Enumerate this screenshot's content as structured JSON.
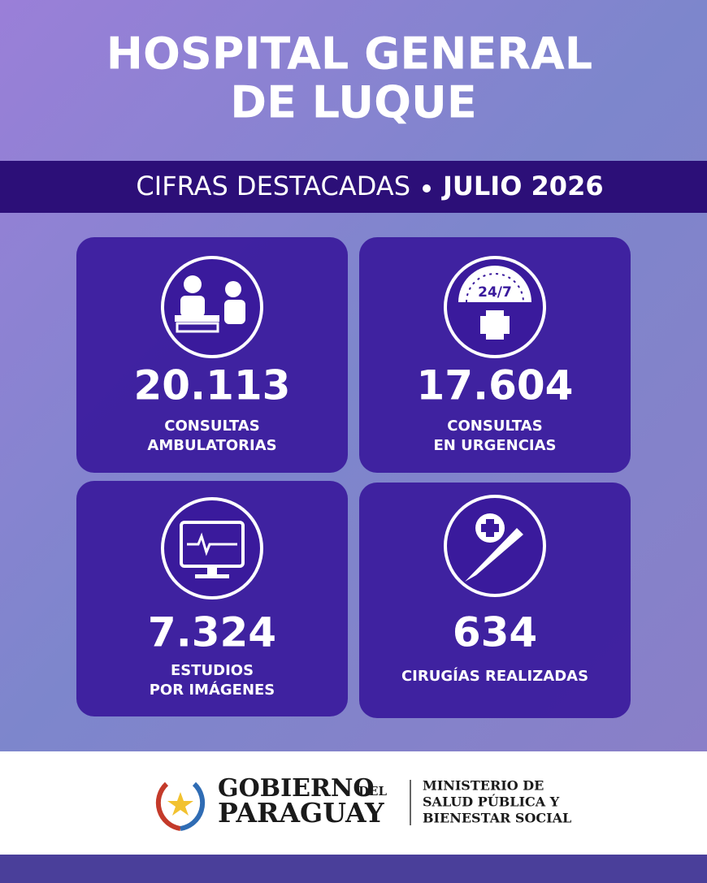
{
  "header": {
    "title": [
      "HOSPITAL GENERAL",
      "DE LUQUE"
    ]
  },
  "banner": {
    "text": "CIFRAS DESTACADAS",
    "period": "JULIO 2026"
  },
  "stats": [
    {
      "value": "20.113",
      "label": [
        "CONSULTAS",
        "AMBULATORIAS"
      ]
    },
    {
      "value": "17.604",
      "label": [
        "CONSULTAS",
        "EN URGENCIAS"
      ],
      "icon_text": "24/7"
    },
    {
      "value": "7.324",
      "label": [
        "ESTUDIOS",
        "POR IMÁGENES"
      ]
    },
    {
      "value": "634",
      "label": [
        "CIRUGÍAS REALIZADAS"
      ]
    }
  ],
  "footer": {
    "gov": [
      "GOBIERNO",
      "DEL",
      "PARAGUAY"
    ],
    "ministry": [
      "MINISTERIO DE",
      "SALUD PÚBLICA Y",
      "BIENESTAR SOCIAL"
    ]
  }
}
